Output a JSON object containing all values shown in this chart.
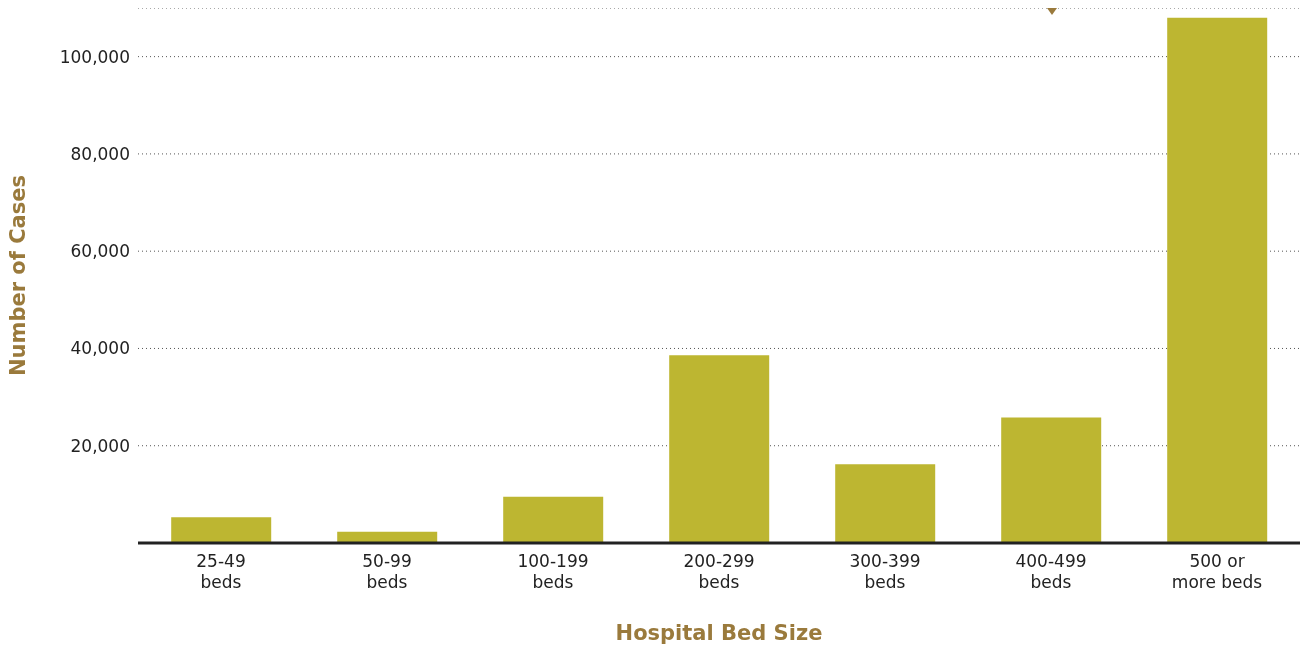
{
  "chart_data": {
    "type": "bar",
    "xlabel": "Hospital Bed Size",
    "ylabel": "Number of Cases",
    "categories": [
      "25-49\nbeds",
      "50-99\nbeds",
      "100-199\nbeds",
      "200-299\nbeds",
      "300-399\nbeds",
      "400-499\nbeds",
      "500 or\nmore beds"
    ],
    "values": [
      5300,
      2300,
      9500,
      38600,
      16200,
      25800,
      108000
    ],
    "color": "#bdb631",
    "ylim": [
      0,
      110000
    ],
    "yticks": [
      {
        "value": 20000,
        "label": "20,000"
      },
      {
        "value": 40000,
        "label": "40,000"
      },
      {
        "value": 60000,
        "label": "60,000"
      },
      {
        "value": 80000,
        "label": "80,000"
      },
      {
        "value": 100000,
        "label": "100,000"
      }
    ],
    "grid": "y"
  }
}
